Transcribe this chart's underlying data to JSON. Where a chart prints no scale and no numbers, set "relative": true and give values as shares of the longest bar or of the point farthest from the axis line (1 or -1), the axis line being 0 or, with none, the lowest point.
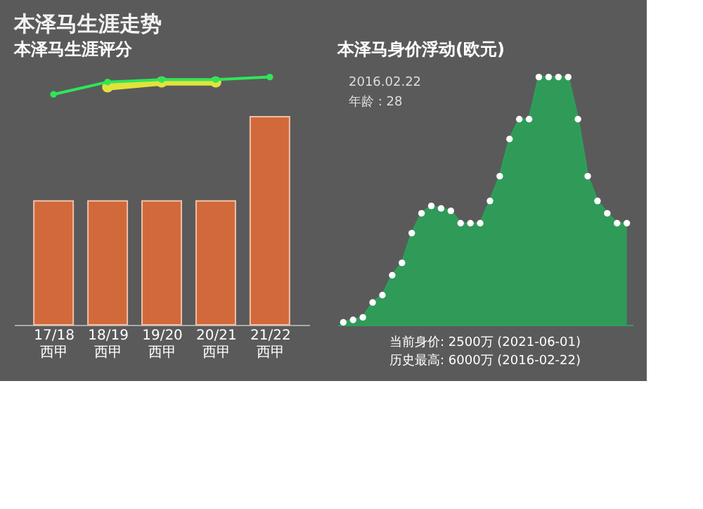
{
  "chart_data": [
    {
      "type": "bar",
      "title": "本泽马生涯走势",
      "subtitle": "本泽马生涯评分",
      "relative": true,
      "categories": [
        "17/18 西甲",
        "18/19 西甲",
        "19/20 西甲",
        "20/21 西甲",
        "21/22 西甲"
      ],
      "series": [
        {
          "type": "bar",
          "color": "#d2693a",
          "values": [
            0.5,
            0.5,
            0.5,
            0.5,
            0.84
          ]
        },
        {
          "type": "line",
          "color": "#e2e23c",
          "marker": "circle",
          "values": [
            null,
            0.96,
            0.98,
            0.98,
            null
          ]
        },
        {
          "type": "line",
          "color": "#2ee65a",
          "marker": "circle",
          "values": [
            0.93,
            0.98,
            0.99,
            0.99,
            1
          ]
        }
      ]
    },
    {
      "type": "area",
      "title": "本泽马身价浮动(欧元)",
      "relative": true,
      "marker": "circle",
      "categories": [
        null,
        null,
        null,
        null,
        null,
        null,
        null,
        null,
        null,
        null,
        null,
        null,
        null,
        null,
        null,
        null,
        null,
        null,
        null,
        null,
        null,
        null,
        null,
        null,
        null,
        null,
        null,
        null,
        null,
        null
      ],
      "series": [
        {
          "color": "#2e9e5a",
          "values": [
            0.01,
            0.02,
            0.03,
            0.09,
            0.12,
            0.2,
            0.25,
            0.37,
            0.45,
            0.48,
            0.47,
            0.46,
            0.41,
            0.41,
            0.41,
            0.5,
            0.6,
            0.75,
            0.83,
            0.83,
            1,
            1,
            1,
            1,
            0.83,
            0.6,
            0.5,
            0.45,
            0.41,
            0.41
          ]
        }
      ],
      "annotations": [
        "2016.02.22",
        "年龄 : 28",
        "当前身价: 2500万 (2021-06-01)",
        "历史最高: 6000万 (2016-02-22)"
      ]
    }
  ]
}
